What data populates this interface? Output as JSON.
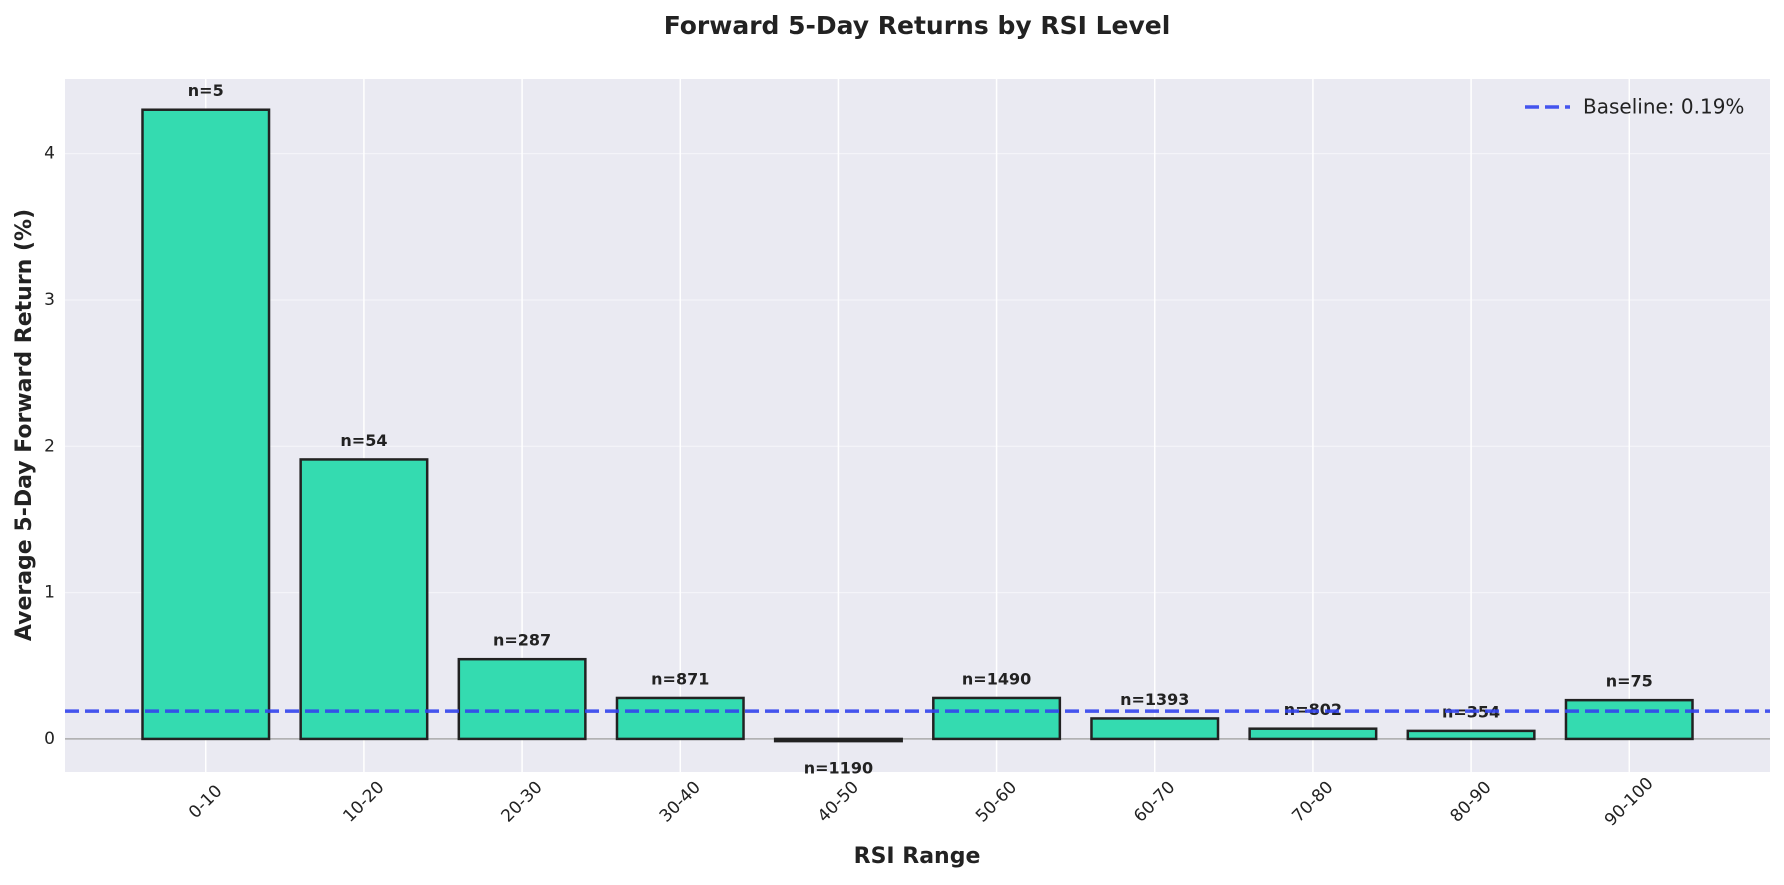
{
  "chart_data": {
    "type": "bar",
    "title": "Forward 5-Day Returns by RSI Level",
    "xlabel": "RSI Range",
    "ylabel": "Average 5-Day Forward Return (%)",
    "categories": [
      "0-10",
      "10-20",
      "20-30",
      "30-40",
      "40-50",
      "50-60",
      "60-70",
      "70-80",
      "80-90",
      "90-100"
    ],
    "values": [
      4.3,
      1.91,
      0.545,
      0.28,
      -0.015,
      0.28,
      0.14,
      0.07,
      0.055,
      0.265
    ],
    "bar_labels": [
      "n=5",
      "n=54",
      "n=287",
      "n=871",
      "n=1190",
      "n=1490",
      "n=1393",
      "n=802",
      "n=354",
      "n=75"
    ],
    "color": "#34dbb0",
    "edge_color": "#222222",
    "baseline": {
      "name": "Baseline: 0.19%",
      "value": 0.19,
      "color": "#3344ee"
    },
    "ylim": [
      -0.226,
      4.51
    ],
    "yticks": [
      0,
      1,
      2,
      3,
      4
    ],
    "grid": true,
    "legend": "upper right"
  }
}
